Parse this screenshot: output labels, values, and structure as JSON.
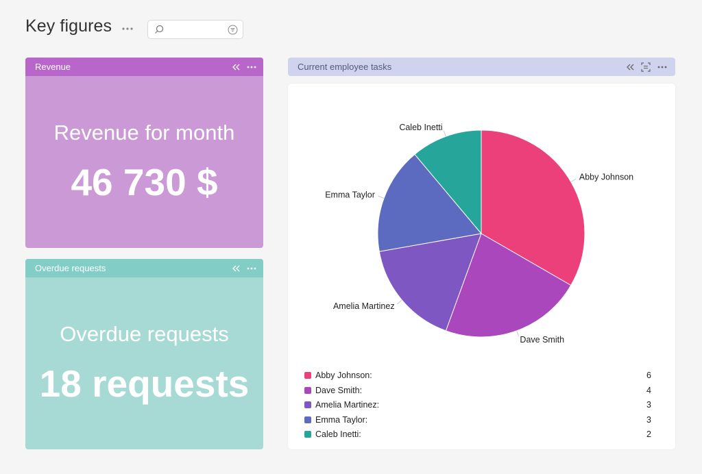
{
  "page": {
    "title": "Key figures",
    "search": {
      "value": "",
      "placeholder": ""
    }
  },
  "widgets": {
    "revenue": {
      "header": "Revenue",
      "caption": "Revenue for month",
      "value": "46 730 $"
    },
    "overdue": {
      "header": "Overdue requests",
      "caption": "Overdue requests",
      "value": "18 requests"
    },
    "tasks": {
      "header": "Current employee tasks"
    }
  },
  "colors": {
    "revenue_header": "#b866c9",
    "revenue_body": "#cb99d5",
    "overdue_header": "#82cdc5",
    "overdue_body": "#a8dad5",
    "tasks_header": "#cfd3ee"
  },
  "icons": {
    "title_more": "more-horizontal-icon",
    "search": "search-icon",
    "filter": "filter-icon",
    "collapse": "collapse-left-icon",
    "expand": "focus-mode-icon",
    "widget_more": "more-horizontal-icon"
  },
  "chart_data": {
    "type": "pie",
    "title": "",
    "series": [
      {
        "name": "Abby Johnson",
        "value": 6,
        "color": "#ec407a",
        "legend_label": "Abby Johnson:"
      },
      {
        "name": "Dave Smith",
        "value": 4,
        "color": "#ab47bc",
        "legend_label": "Dave Smith:"
      },
      {
        "name": "Amelia Martinez",
        "value": 3,
        "color": "#7e57c2",
        "legend_label": "Amelia Martinez:"
      },
      {
        "name": "Emma Taylor",
        "value": 3,
        "color": "#5c6bc0",
        "legend_label": "Emma Taylor:"
      },
      {
        "name": "Caleb Inetti",
        "value": 2,
        "color": "#26a69a",
        "legend_label": "Caleb Inetti:"
      }
    ],
    "legend_position": "bottom"
  }
}
